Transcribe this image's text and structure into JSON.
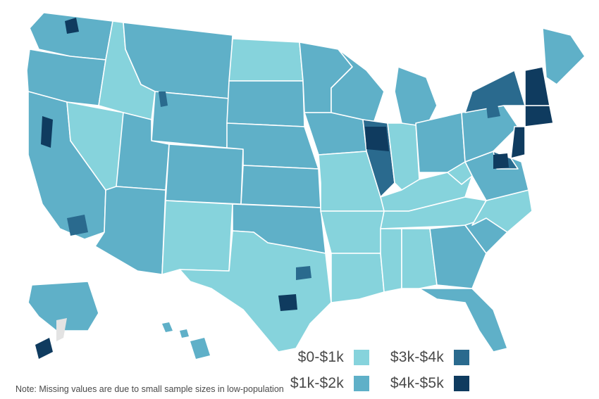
{
  "colors": {
    "bin_0_1k": "#86d3dc",
    "bin_1k_2k": "#5fb0c8",
    "bin_2k_3k": "#4596b5",
    "bin_3k_4k": "#2a6a8e",
    "bin_4k_5k": "#0f3b5f",
    "missing": "#e3e3e3",
    "state_border": "#ffffff"
  },
  "legend": [
    {
      "label": "$0-$1k",
      "color_key": "bin_0_1k"
    },
    {
      "label": "$1k-$2k",
      "color_key": "bin_1k_2k"
    },
    {
      "label": "$3k-$4k",
      "color_key": "bin_3k_4k"
    },
    {
      "label": "$4k-$5k",
      "color_key": "bin_4k_5k"
    }
  ],
  "note": "Note: Missing values are due to small sample sizes in low-population"
}
